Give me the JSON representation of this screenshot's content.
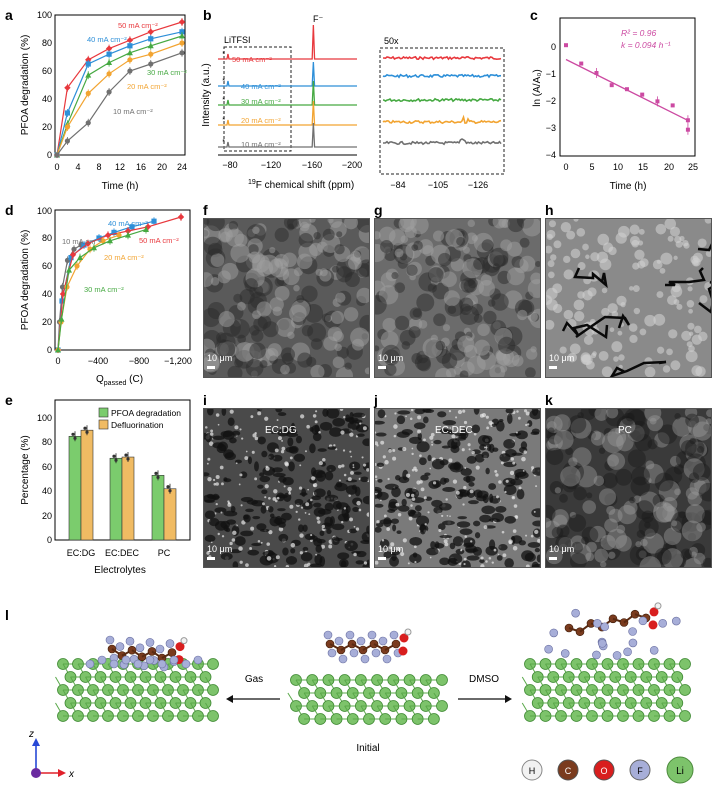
{
  "colors": {
    "c50": "#e8383d",
    "c40": "#2d8fd8",
    "c30": "#46a942",
    "c20": "#f2a431",
    "c10": "#707070",
    "pink": "#cc4aa2",
    "green_bar": "#7bcc6d",
    "orange_bar": "#f0bb63",
    "atom_H": "#f2f2f2",
    "atom_C": "#7a3b1e",
    "atom_O": "#d81e1e",
    "atom_F": "#a7aed8",
    "atom_Li": "#7dc36b"
  },
  "panel_a": {
    "label": "a",
    "xlabel": "Time (h)",
    "ylabel": "PFOA degradation (%)",
    "xticks": [
      "0",
      "4",
      "8",
      "12",
      "16",
      "20",
      "24"
    ],
    "yticks": [
      "0",
      "20",
      "40",
      "60",
      "80",
      "100"
    ],
    "series_labels": [
      "50 mA cm⁻²",
      "40 mA cm⁻²",
      "30 mA cm⁻²",
      "20 mA cm⁻²",
      "10 mA cm⁻²"
    ]
  },
  "panel_b": {
    "label": "b",
    "xlabel_sup": "19",
    "xlabel_rest": "F chemical shift (ppm)",
    "ylabel": "Intensity (a.u.)",
    "xticks": [
      "−80",
      "−120",
      "−160",
      "−200"
    ],
    "inset_label": "50x",
    "inset_xticks": [
      "−84",
      "−105",
      "−126"
    ],
    "litfsi": "LiTFSI",
    "fion": "F⁻",
    "star": "*",
    "series_labels": [
      "50 mA cm⁻²",
      "40 mA cm⁻²",
      "30 mA cm⁻²",
      "20 mA cm⁻²",
      "10 mA cm⁻²"
    ]
  },
  "panel_c": {
    "label": "c",
    "xlabel": "Time (h)",
    "ylabel": "ln (A/A₀)",
    "r2": "R² = 0.96",
    "k": "k = 0.094 h⁻¹",
    "xticks": [
      "0",
      "5",
      "10",
      "15",
      "20",
      "25"
    ],
    "yticks": [
      "0",
      "−1",
      "−2",
      "−3",
      "−4"
    ]
  },
  "panel_d": {
    "label": "d",
    "xlabel": "Q",
    "xlabel_sub": "passed",
    "xlabel_unit": " (C)",
    "ylabel": "PFOA degradation (%)",
    "xticks": [
      "0",
      "−400",
      "−800",
      "−1,200"
    ],
    "yticks": [
      "0",
      "20",
      "40",
      "60",
      "80",
      "100"
    ],
    "series_labels": [
      "10 mA cm⁻²",
      "40 mA cm⁻²",
      "50 mA cm⁻²",
      "20 mA cm⁻²",
      "30 mA cm⁻²"
    ]
  },
  "panel_e": {
    "label": "e",
    "ylabel": "Percentage (%)",
    "xlabel": "Electrolytes",
    "yticks": [
      "0",
      "20",
      "40",
      "60",
      "80",
      "100"
    ],
    "legend": [
      "PFOA degradation",
      "Defluorination"
    ]
  },
  "sem_panels": [
    {
      "label": "f",
      "scale": "10 μm",
      "caption": ""
    },
    {
      "label": "g",
      "scale": "10 μm",
      "caption": ""
    },
    {
      "label": "h",
      "scale": "10 μm",
      "caption": ""
    },
    {
      "label": "i",
      "scale": "10 μm",
      "caption": "EC:DG"
    },
    {
      "label": "j",
      "scale": "10 μm",
      "caption": "EC:DEC"
    },
    {
      "label": "k",
      "scale": "10 μm",
      "caption": "PC"
    }
  ],
  "panel_l": {
    "label": "l",
    "gas": "Gas",
    "dmso": "DMSO",
    "initial": "Initial",
    "axis_z": "z",
    "axis_x": "x",
    "legend": [
      "H",
      "C",
      "O",
      "F",
      "Li"
    ]
  },
  "chart_data": [
    {
      "type": "line",
      "panel": "a",
      "title": "",
      "xlabel": "Time (h)",
      "ylabel": "PFOA degradation (%)",
      "xlim": [
        0,
        25
      ],
      "ylim": [
        0,
        100
      ],
      "series": [
        {
          "name": "50 mA cm-2",
          "x": [
            0,
            2,
            6,
            10,
            14,
            18,
            24
          ],
          "values": [
            0,
            48,
            68,
            76,
            82,
            88,
            95
          ]
        },
        {
          "name": "40 mA cm-2",
          "x": [
            0,
            2,
            6,
            10,
            14,
            18,
            24
          ],
          "values": [
            0,
            30,
            65,
            72,
            78,
            83,
            88
          ]
        },
        {
          "name": "30 mA cm-2",
          "x": [
            0,
            2,
            6,
            10,
            14,
            18,
            24
          ],
          "values": [
            0,
            22,
            57,
            66,
            73,
            78,
            85
          ]
        },
        {
          "name": "20 mA cm-2",
          "x": [
            0,
            2,
            6,
            10,
            14,
            18,
            24
          ],
          "values": [
            0,
            20,
            44,
            58,
            68,
            72,
            80
          ]
        },
        {
          "name": "10 mA cm-2",
          "x": [
            0,
            2,
            6,
            10,
            14,
            18,
            24
          ],
          "values": [
            0,
            10,
            23,
            45,
            60,
            65,
            73
          ]
        }
      ]
    },
    {
      "type": "line",
      "panel": "b",
      "title": "",
      "xlabel": "19F chemical shift (ppm)",
      "ylabel": "Intensity (a.u.)",
      "xlim": [
        -60,
        -200
      ],
      "peak_positions": [
        -78,
        -162
      ],
      "series": [
        {
          "name": "50 mA cm-2"
        },
        {
          "name": "40 mA cm-2"
        },
        {
          "name": "30 mA cm-2"
        },
        {
          "name": "20 mA cm-2"
        },
        {
          "name": "10 mA cm-2"
        }
      ]
    },
    {
      "type": "scatter",
      "panel": "c",
      "title": "",
      "xlabel": "Time (h)",
      "ylabel": "ln (A/A0)",
      "xlim": [
        -1,
        25
      ],
      "ylim": [
        -4,
        1
      ],
      "x": [
        0,
        3,
        6,
        9,
        12,
        15,
        18,
        21,
        24,
        24
      ],
      "values": [
        0.03,
        -0.65,
        -1.0,
        -1.45,
        -1.6,
        -1.8,
        -2.05,
        -2.2,
        -2.75,
        -3.1
      ],
      "fit": {
        "slope": -0.094,
        "intercept": -0.5
      }
    },
    {
      "type": "line",
      "panel": "d",
      "title": "",
      "xlabel": "Q passed (C)",
      "ylabel": "PFOA degradation (%)",
      "xlim": [
        0,
        -1300
      ],
      "ylim": [
        0,
        100
      ],
      "series": [
        {
          "name": "10 mA cm-2",
          "x": [
            0,
            -15,
            -45,
            -95,
            -160,
            -230
          ],
          "values": [
            0,
            20,
            45,
            64,
            72,
            75
          ]
        },
        {
          "name": "40 mA cm-2",
          "x": [
            0,
            -40,
            -130,
            -260,
            -410,
            -560,
            -740,
            -960
          ],
          "values": [
            0,
            35,
            66,
            75,
            80,
            84,
            88,
            92
          ]
        },
        {
          "name": "50 mA cm-2",
          "x": [
            0,
            -50,
            -150,
            -300,
            -500,
            -700,
            -900,
            -1230
          ],
          "values": [
            0,
            40,
            68,
            76,
            82,
            85,
            88,
            95
          ]
        },
        {
          "name": "20 mA cm-2",
          "x": [
            0,
            -30,
            -90,
            -190,
            -320,
            -450,
            -610
          ],
          "values": [
            0,
            20,
            45,
            60,
            72,
            78,
            82
          ]
        },
        {
          "name": "30 mA cm-2",
          "x": [
            0,
            -35,
            -110,
            -220,
            -360,
            -520,
            -700,
            -880
          ],
          "values": [
            0,
            22,
            57,
            66,
            73,
            78,
            82,
            86
          ]
        }
      ]
    },
    {
      "type": "bar",
      "panel": "e",
      "title": "",
      "xlabel": "Electrolytes",
      "ylabel": "Percentage (%)",
      "ylim": [
        0,
        100
      ],
      "categories": [
        "EC:DG",
        "EC:DEC",
        "PC"
      ],
      "series": [
        {
          "name": "PFOA degradation",
          "values": [
            85,
            67,
            53
          ]
        },
        {
          "name": "Defluorination",
          "values": [
            90,
            68,
            42
          ]
        }
      ]
    }
  ]
}
